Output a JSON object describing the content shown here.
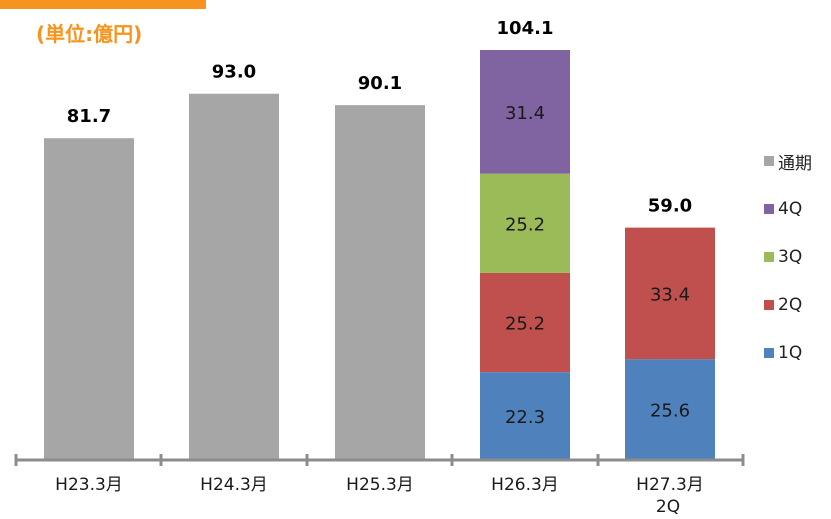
{
  "header": {
    "unit_label": "(単位:億円)"
  },
  "legend": [
    {
      "label": "通期",
      "color": "#a6a6a6"
    },
    {
      "label": "4Q",
      "color": "#8064a2"
    },
    {
      "label": "3Q",
      "color": "#9bbb59"
    },
    {
      "label": "2Q",
      "color": "#c0504d"
    },
    {
      "label": "1Q",
      "color": "#4f81bd"
    }
  ],
  "chart_data": {
    "type": "bar",
    "stacked": true,
    "categories": [
      "H23.3月",
      "H24.3月",
      "H25.3月",
      "H26.3月",
      "H27.3月\n2Q"
    ],
    "series": [
      {
        "name": "通期",
        "color": "#a6a6a6",
        "values": [
          81.7,
          93.0,
          90.1,
          null,
          null
        ]
      },
      {
        "name": "1Q",
        "color": "#4f81bd",
        "values": [
          null,
          null,
          null,
          22.3,
          25.6
        ]
      },
      {
        "name": "2Q",
        "color": "#c0504d",
        "values": [
          null,
          null,
          null,
          25.2,
          33.4
        ]
      },
      {
        "name": "3Q",
        "color": "#9bbb59",
        "values": [
          null,
          null,
          null,
          25.2,
          null
        ]
      },
      {
        "name": "4Q",
        "color": "#8064a2",
        "values": [
          null,
          null,
          null,
          31.4,
          null
        ]
      }
    ],
    "totals": [
      "81.7",
      "93.0",
      "90.1",
      "104.1",
      "59.0"
    ],
    "segment_labels": [
      [],
      [],
      [],
      [
        "22.3",
        "25.2",
        "25.2",
        "31.4"
      ],
      [
        "25.6",
        "33.4"
      ]
    ],
    "ylim": [
      0,
      104.1
    ],
    "grid": false,
    "legend_position": "right"
  }
}
